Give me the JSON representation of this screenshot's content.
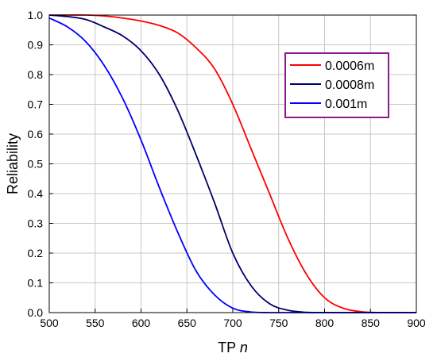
{
  "chart_data": {
    "type": "line",
    "xlabel": "TP",
    "xlabel_italic": "n",
    "ylabel": "Reliability",
    "xlim": [
      500,
      900
    ],
    "ylim": [
      0.0,
      1.0
    ],
    "x_ticks": [
      "500",
      "550",
      "600",
      "650",
      "700",
      "750",
      "800",
      "850",
      "900"
    ],
    "y_ticks": [
      "0.0",
      "0.1",
      "0.2",
      "0.3",
      "0.4",
      "0.5",
      "0.6",
      "0.7",
      "0.8",
      "0.9",
      "1.0"
    ],
    "grid": true,
    "legend_position": "top-right",
    "legend_border_color": "#8b1a8b",
    "x": [
      500,
      520,
      540,
      560,
      580,
      600,
      620,
      640,
      660,
      680,
      700,
      720,
      740,
      760,
      780,
      800,
      820,
      840,
      860,
      880,
      900
    ],
    "series": [
      {
        "name": "0.0006m",
        "color": "#ff0000",
        "values": [
          1.0,
          1.0,
          1.0,
          0.997,
          0.99,
          0.98,
          0.965,
          0.94,
          0.89,
          0.82,
          0.7,
          0.55,
          0.4,
          0.25,
          0.13,
          0.05,
          0.015,
          0.003,
          0.0,
          0.0,
          0.0
        ]
      },
      {
        "name": "0.0008m",
        "color": "#00006b",
        "values": [
          1.0,
          0.995,
          0.985,
          0.96,
          0.93,
          0.88,
          0.8,
          0.68,
          0.53,
          0.37,
          0.2,
          0.09,
          0.03,
          0.008,
          0.001,
          0.0,
          0.0,
          0.0,
          0.0,
          0.0,
          0.0
        ]
      },
      {
        "name": "0.001m",
        "color": "#0000ff",
        "values": [
          0.99,
          0.96,
          0.91,
          0.83,
          0.72,
          0.58,
          0.42,
          0.27,
          0.14,
          0.06,
          0.015,
          0.002,
          0.0,
          0.0,
          0.0,
          0.0,
          0.0,
          0.0,
          0.0,
          0.0,
          0.0
        ]
      }
    ]
  }
}
